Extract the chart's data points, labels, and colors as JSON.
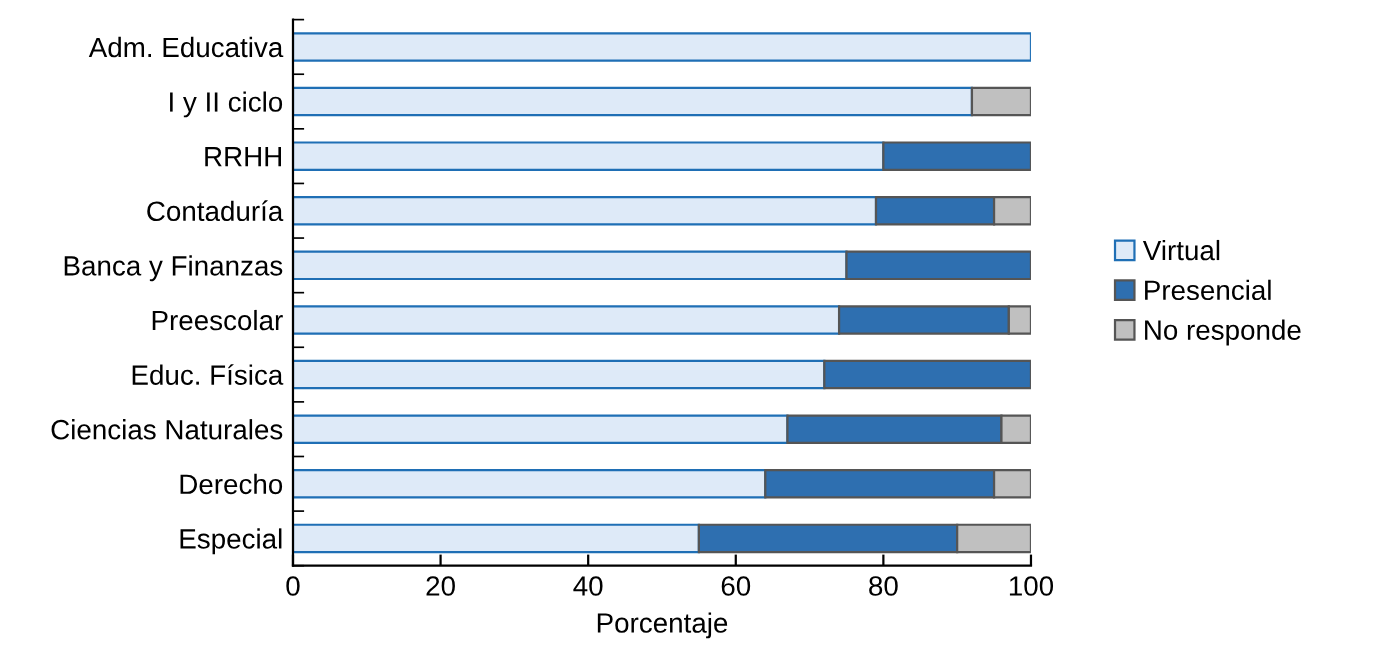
{
  "chart_data": {
    "type": "bar",
    "orientation": "horizontal",
    "stacked": true,
    "xlabel": "Porcentaje",
    "categories": [
      "Adm. Educativa",
      "I y II ciclo",
      "RRHH",
      "Contaduría",
      "Banca y Finanzas",
      "Preescolar",
      "Educ. Física",
      "Ciencias Naturales",
      "Derecho",
      "Especial"
    ],
    "series": [
      {
        "name": "Virtual",
        "color": "#deeaf8",
        "values": [
          100,
          92,
          80,
          79,
          75,
          74,
          72,
          67,
          64,
          55
        ]
      },
      {
        "name": "Presencial",
        "color": "#2e6fb0",
        "values": [
          0,
          0,
          20,
          16,
          25,
          23,
          28,
          29,
          31,
          35
        ]
      },
      {
        "name": "No responde",
        "color": "#c0c0c0",
        "values": [
          0,
          8,
          0,
          5,
          0,
          3,
          0,
          4,
          5,
          10
        ]
      }
    ],
    "xlim": [
      0,
      100
    ],
    "xticks": [
      0,
      20,
      40,
      60,
      80,
      100
    ],
    "legend": "right",
    "grid": false
  }
}
